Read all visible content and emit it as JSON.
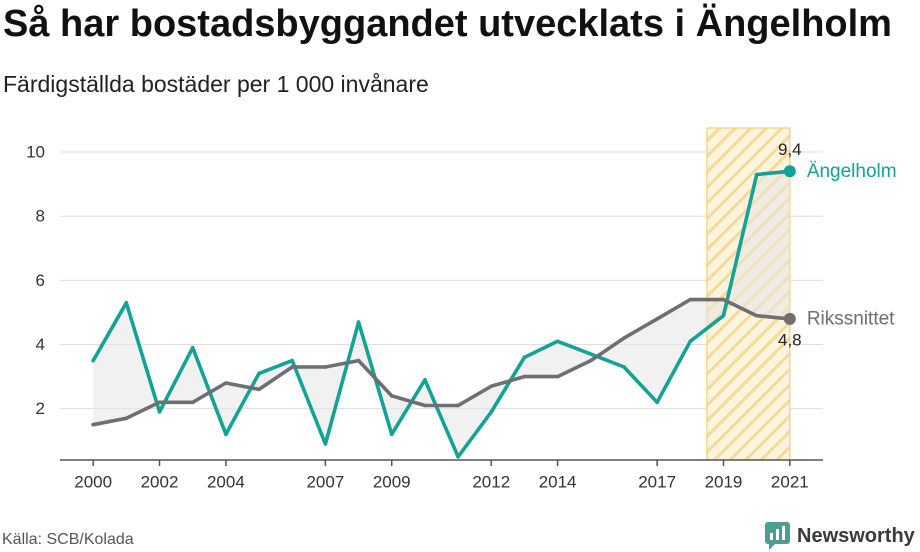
{
  "chart_data": {
    "type": "line",
    "title": "Så har bostadsbyggandet utvecklats i Ängelholm",
    "subtitle": "Färdigställda bostäder per 1 000 invånare",
    "x": [
      2000,
      2001,
      2002,
      2003,
      2004,
      2005,
      2006,
      2007,
      2008,
      2009,
      2010,
      2011,
      2012,
      2013,
      2014,
      2015,
      2016,
      2017,
      2018,
      2019,
      2020,
      2021
    ],
    "x_ticks": [
      2000,
      2002,
      2004,
      2007,
      2009,
      2012,
      2014,
      2017,
      2019,
      2021
    ],
    "y_ticks": [
      2,
      4,
      6,
      8,
      10
    ],
    "xlim": [
      1999,
      2022
    ],
    "ylim": [
      0.4,
      10.75
    ],
    "grid": true,
    "series": [
      {
        "name": "Ängelholm",
        "color": "#13a396",
        "end_label": "9,4",
        "values": [
          3.5,
          5.3,
          1.9,
          3.9,
          1.2,
          3.1,
          3.5,
          0.9,
          4.7,
          1.2,
          2.9,
          0.5,
          1.9,
          3.6,
          4.1,
          3.7,
          3.3,
          2.2,
          4.1,
          4.9,
          9.3,
          9.4
        ]
      },
      {
        "name": "Rikssnittet",
        "color": "#6e6e73",
        "end_label": "4,8",
        "values": [
          1.5,
          1.7,
          2.2,
          2.2,
          2.8,
          2.6,
          3.3,
          3.3,
          3.5,
          2.4,
          2.1,
          2.1,
          2.7,
          3.0,
          3.0,
          3.5,
          4.2,
          4.8,
          5.4,
          5.4,
          4.9,
          4.8
        ]
      }
    ],
    "between_fill": "#e6e6e6",
    "highlight": {
      "x_start": 2018.5,
      "x_end": 2021,
      "fill": "#fdf4de",
      "stripe": "#f8da95",
      "border": "#f3cf72"
    },
    "source": "Källa: SCB/Kolada"
  },
  "brand": {
    "name": "Newsworthy",
    "icon": "newsworthy-logo-icon",
    "color": "#4b9e95"
  }
}
